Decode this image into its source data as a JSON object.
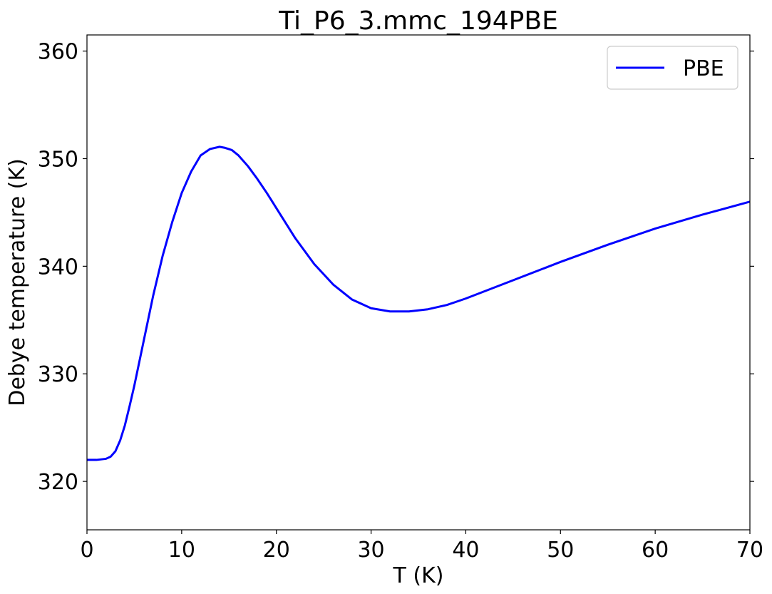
{
  "chart_data": {
    "type": "line",
    "title": "Ti_P6_3.mmc_194PBE",
    "xlabel": "T (K)",
    "ylabel": "Debye temperature (K)",
    "xlim": [
      0,
      70
    ],
    "ylim": [
      315.5,
      361.5
    ],
    "xticks": [
      0,
      10,
      20,
      30,
      40,
      50,
      60,
      70
    ],
    "yticks": [
      320,
      330,
      340,
      350,
      360
    ],
    "xtick_labels": [
      "0",
      "10",
      "20",
      "30",
      "40",
      "50",
      "60",
      "70"
    ],
    "ytick_labels": [
      "320",
      "330",
      "340",
      "350",
      "360"
    ],
    "grid": false,
    "legend_position": "top-right",
    "series": [
      {
        "name": "PBE",
        "color": "#0000ff",
        "x": [
          0,
          1,
          2,
          2.5,
          3,
          3.5,
          4,
          4.5,
          5,
          6,
          7,
          8,
          9,
          10,
          11,
          12,
          13,
          14,
          14.6,
          15.3,
          16,
          17,
          18,
          19,
          20,
          22,
          24,
          26,
          28,
          30,
          32,
          33,
          34,
          36,
          38,
          40,
          45,
          50,
          55,
          60,
          65,
          70
        ],
        "y": [
          322.0,
          322.0,
          322.1,
          322.3,
          322.8,
          323.8,
          325.2,
          327.0,
          328.9,
          333.1,
          337.3,
          341.0,
          344.1,
          346.8,
          348.8,
          350.3,
          350.9,
          351.1,
          351.0,
          350.8,
          350.3,
          349.3,
          348.1,
          346.8,
          345.4,
          342.6,
          340.2,
          338.3,
          336.9,
          336.1,
          335.8,
          335.8,
          335.8,
          336.0,
          336.4,
          337.0,
          338.7,
          340.4,
          342.0,
          343.5,
          344.8,
          346.0
        ]
      }
    ]
  }
}
